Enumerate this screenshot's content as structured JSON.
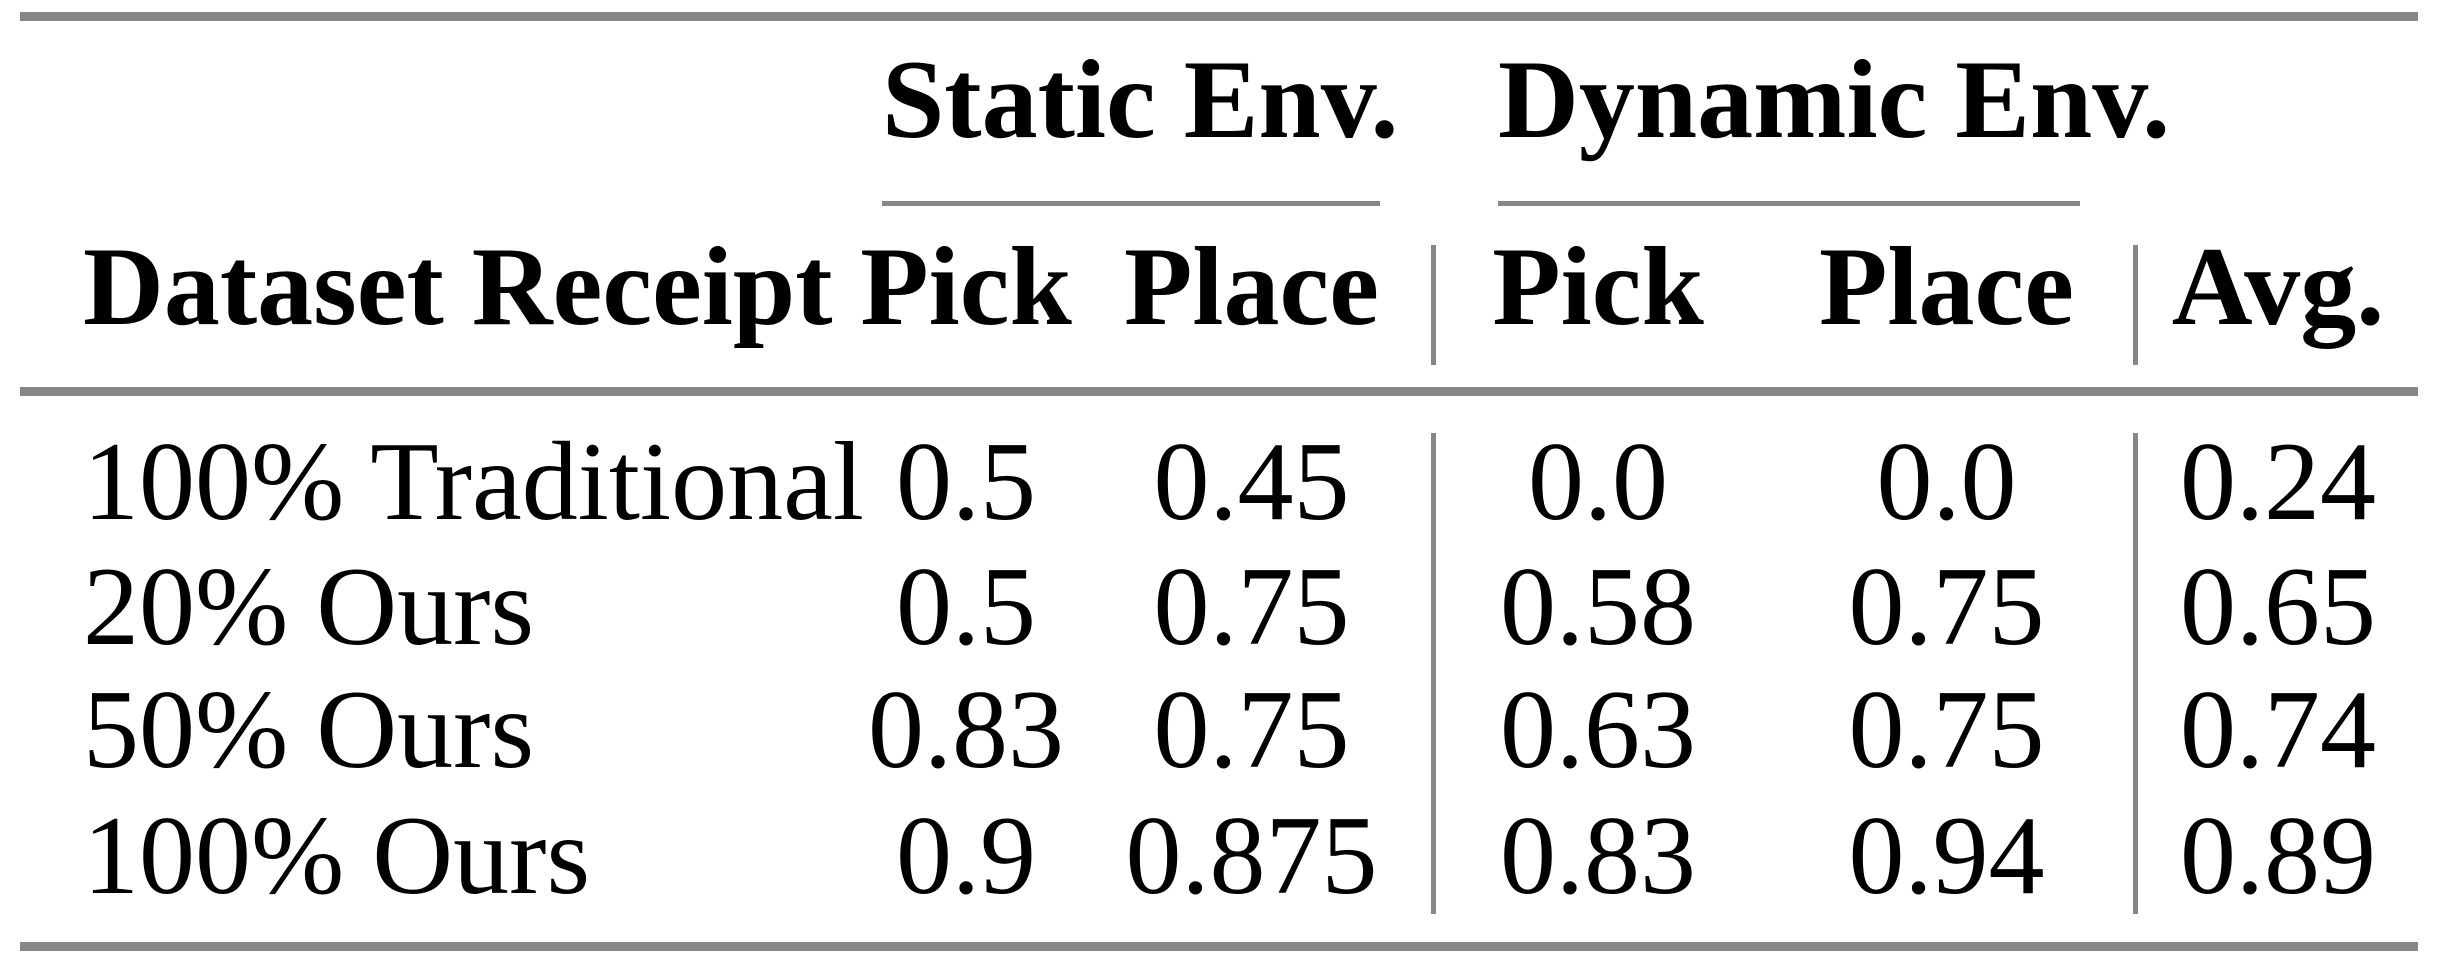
{
  "table": {
    "rule_color": "#878787",
    "column_groups": [
      {
        "label": "Static Env."
      },
      {
        "label": "Dynamic Env."
      }
    ],
    "columns": {
      "label": "Dataset Receipt",
      "static_pick": "Pick",
      "static_place": "Place",
      "dynamic_pick": "Pick",
      "dynamic_place": "Place",
      "avg": "Avg."
    },
    "rows": [
      {
        "label": "100% Traditional",
        "values": [
          "0.5",
          "0.45",
          "0.0",
          "0.0",
          "0.24"
        ]
      },
      {
        "label": "20% Ours",
        "values": [
          "0.5",
          "0.75",
          "0.58",
          "0.75",
          "0.65"
        ]
      },
      {
        "label": "50% Ours",
        "values": [
          "0.83",
          "0.75",
          "0.63",
          "0.75",
          "0.74"
        ]
      },
      {
        "label": "100% Ours",
        "values": [
          "0.9",
          "0.875",
          "0.83",
          "0.94",
          "0.89"
        ]
      }
    ]
  }
}
